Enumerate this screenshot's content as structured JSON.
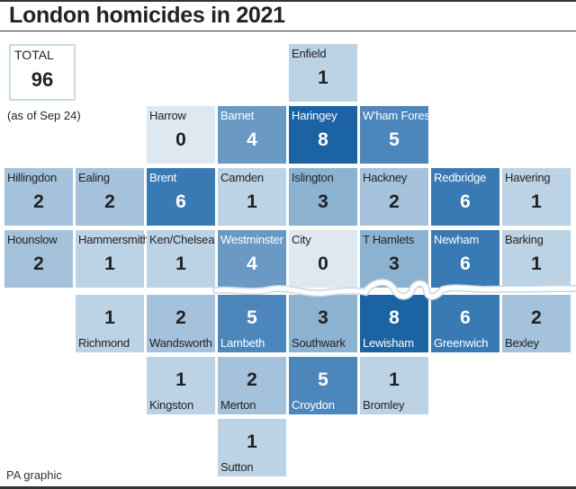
{
  "title": "London homicides in 2021",
  "total_label": "TOTAL",
  "total_value": "96",
  "as_of": "(as of Sep 24)",
  "source": "PA graphic",
  "colors": {
    "c0": "#dde8f1",
    "c1": "#bcd2e5",
    "c2": "#a4c2db",
    "c3": "#8cb2d2",
    "c4": "#6a9ac4",
    "c5": "#4d86ba",
    "c6": "#3a7ab4",
    "c8": "#1b63a2",
    "river": "#ffffff",
    "river_edge": "#c9d6e2"
  },
  "chart_data": {
    "type": "heatmap",
    "title": "London homicides in 2021",
    "total": 96,
    "boroughs": [
      {
        "name": "Enfield",
        "value": 1,
        "row": 0,
        "col": 4
      },
      {
        "name": "Harrow",
        "value": 0,
        "row": 1,
        "col": 2
      },
      {
        "name": "Barnet",
        "value": 4,
        "row": 1,
        "col": 3
      },
      {
        "name": "Haringey",
        "value": 8,
        "row": 1,
        "col": 4
      },
      {
        "name": "W'ham Forest",
        "value": 5,
        "row": 1,
        "col": 5
      },
      {
        "name": "Hillingdon",
        "value": 2,
        "row": 2,
        "col": 0
      },
      {
        "name": "Ealing",
        "value": 2,
        "row": 2,
        "col": 1
      },
      {
        "name": "Brent",
        "value": 6,
        "row": 2,
        "col": 2
      },
      {
        "name": "Camden",
        "value": 1,
        "row": 2,
        "col": 3
      },
      {
        "name": "Islington",
        "value": 3,
        "row": 2,
        "col": 4
      },
      {
        "name": "Hackney",
        "value": 2,
        "row": 2,
        "col": 5
      },
      {
        "name": "Redbridge",
        "value": 6,
        "row": 2,
        "col": 6
      },
      {
        "name": "Havering",
        "value": 1,
        "row": 2,
        "col": 7
      },
      {
        "name": "Hounslow",
        "value": 2,
        "row": 3,
        "col": 0
      },
      {
        "name": "Hammersmith",
        "value": 1,
        "row": 3,
        "col": 1
      },
      {
        "name": "Ken/Chelsea",
        "value": 1,
        "row": 3,
        "col": 2
      },
      {
        "name": "Westminster",
        "value": 4,
        "row": 3,
        "col": 3
      },
      {
        "name": "City",
        "value": 0,
        "row": 3,
        "col": 4
      },
      {
        "name": "T Hamlets",
        "value": 3,
        "row": 3,
        "col": 5
      },
      {
        "name": "Newham",
        "value": 6,
        "row": 3,
        "col": 6
      },
      {
        "name": "Barking",
        "value": 1,
        "row": 3,
        "col": 7
      },
      {
        "name": "Richmond",
        "value": 1,
        "row": 4,
        "col": 1
      },
      {
        "name": "Wandsworth",
        "value": 2,
        "row": 4,
        "col": 2
      },
      {
        "name": "Lambeth",
        "value": 5,
        "row": 4,
        "col": 3
      },
      {
        "name": "Southwark",
        "value": 3,
        "row": 4,
        "col": 4
      },
      {
        "name": "Lewisham",
        "value": 8,
        "row": 4,
        "col": 5
      },
      {
        "name": "Greenwich",
        "value": 6,
        "row": 4,
        "col": 6
      },
      {
        "name": "Bexley",
        "value": 2,
        "row": 4,
        "col": 7
      },
      {
        "name": "Kingston",
        "value": 1,
        "row": 5,
        "col": 2
      },
      {
        "name": "Merton",
        "value": 2,
        "row": 5,
        "col": 3
      },
      {
        "name": "Croydon",
        "value": 5,
        "row": 5,
        "col": 4
      },
      {
        "name": "Bromley",
        "value": 1,
        "row": 5,
        "col": 5
      },
      {
        "name": "Sutton",
        "value": 1,
        "row": 6,
        "col": 3
      }
    ]
  }
}
